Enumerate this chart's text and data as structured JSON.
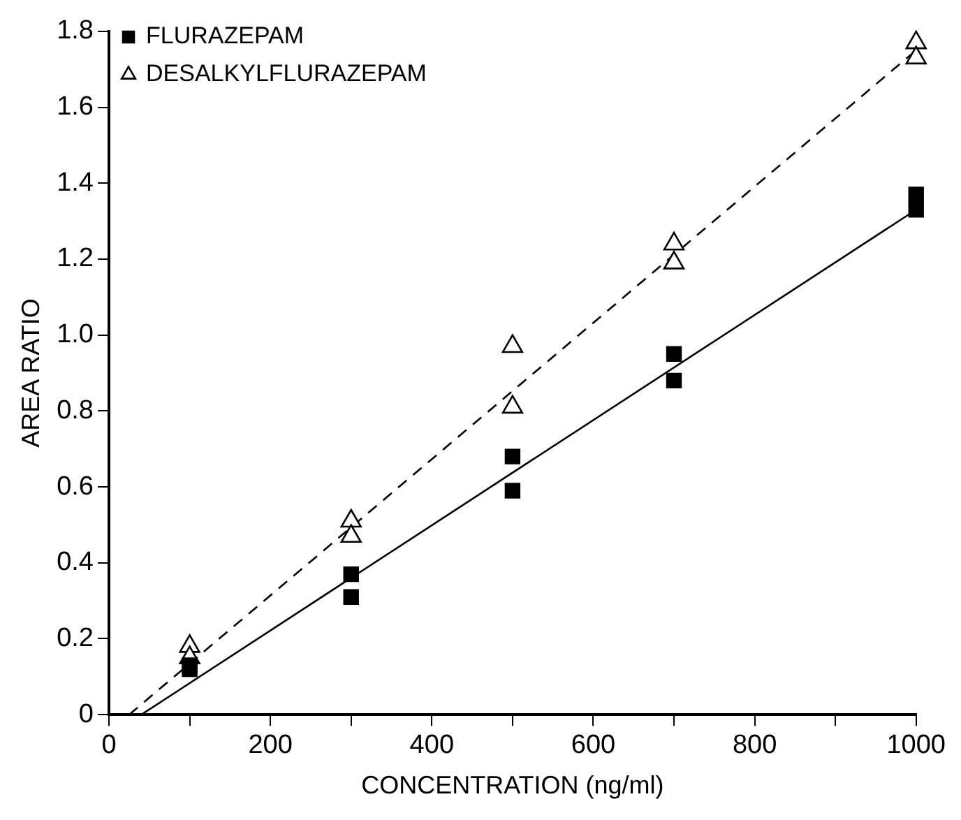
{
  "chart_data": {
    "type": "scatter",
    "xlabel": "CONCENTRATION (ng/ml)",
    "ylabel": "AREA RATIO",
    "legend": "top left",
    "xlim": [
      0,
      1000
    ],
    "xticks": [
      0,
      {
        "value": 100,
        "label": null
      },
      200,
      {
        "value": 300,
        "label": null
      },
      400,
      {
        "value": 500,
        "label": null
      },
      600,
      {
        "value": 700,
        "label": null
      },
      800,
      {
        "value": 900,
        "label": null
      },
      1000
    ],
    "ylim": [
      0,
      1.8
    ],
    "yticks": [
      0,
      0.2,
      0.4,
      0.6,
      0.8,
      {
        "value": 1,
        "label": "1.0"
      },
      1.2,
      1.4,
      1.6,
      1.8
    ],
    "series": [
      {
        "name": "FLURAZEPAM",
        "type": "scatter",
        "marker": "square",
        "color": "#000000",
        "x": [
          100,
          100,
          300,
          300,
          500,
          500,
          700,
          700,
          1000,
          1000
        ],
        "values": [
          0.12,
          0.13,
          0.37,
          0.31,
          0.68,
          0.59,
          0.95,
          0.88,
          1.37,
          1.33
        ]
      },
      {
        "name": "DESALKYLFLURAZEPAM",
        "type": "scatter",
        "marker": "triangle",
        "color": "#000000",
        "x": [
          100,
          100,
          300,
          300,
          500,
          500,
          700,
          700,
          1000,
          1000
        ],
        "values": [
          0.18,
          0.15,
          0.51,
          0.47,
          0.97,
          0.81,
          1.24,
          1.19,
          1.77,
          1.73
        ]
      },
      {
        "type": "line",
        "line_style": "solid",
        "marker": "none",
        "color": "#000000",
        "x": [
          40,
          1000
        ],
        "values": [
          0,
          1.33
        ]
      },
      {
        "type": "line",
        "line_style": "dashed",
        "marker": "none",
        "color": "#000000",
        "x": [
          25,
          1000
        ],
        "values": [
          0,
          1.75
        ]
      }
    ]
  }
}
